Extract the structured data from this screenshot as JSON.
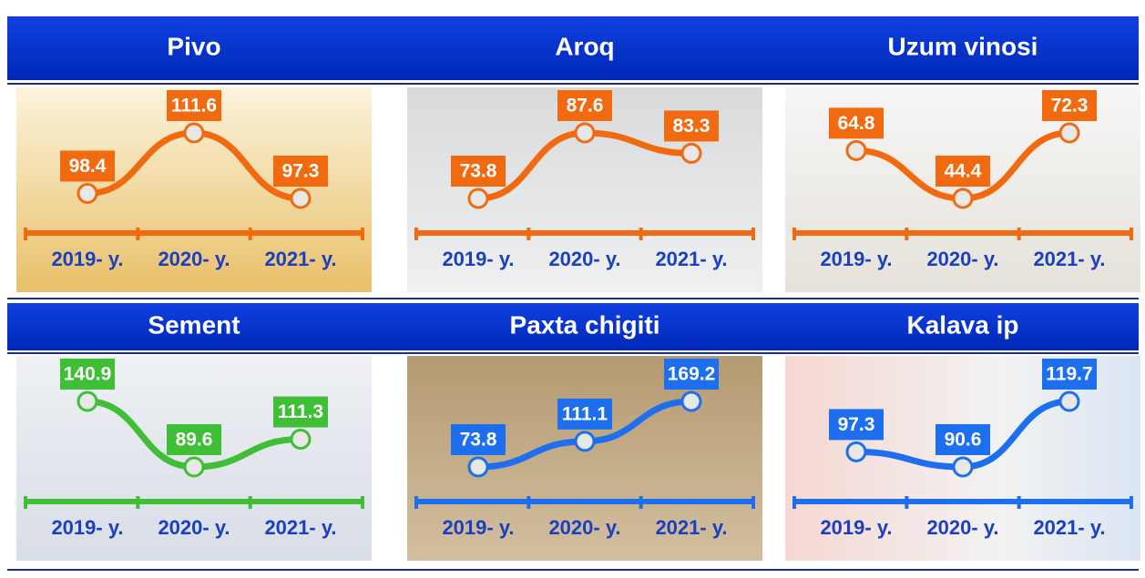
{
  "chart_data": [
    {
      "type": "line",
      "title": "Pivo",
      "categories": [
        "2019- y.",
        "2020- y.",
        "2021- y."
      ],
      "values": [
        98.4,
        111.6,
        97.3
      ],
      "color": "#f26a10"
    },
    {
      "type": "line",
      "title": "Aroq",
      "categories": [
        "2019- y.",
        "2020- y.",
        "2021- y."
      ],
      "values": [
        73.8,
        87.6,
        83.3
      ],
      "color": "#f26a10"
    },
    {
      "type": "line",
      "title": "Uzum vinosi",
      "categories": [
        "2019- y.",
        "2020- y.",
        "2021- y."
      ],
      "values": [
        64.8,
        44.4,
        72.3
      ],
      "color": "#f26a10"
    },
    {
      "type": "line",
      "title": "Sement",
      "categories": [
        "2019- y.",
        "2020- y.",
        "2021- y."
      ],
      "values": [
        140.9,
        89.6,
        111.3
      ],
      "color": "#3fbf35"
    },
    {
      "type": "line",
      "title": "Paxta chigiti",
      "categories": [
        "2019- y.",
        "2020- y.",
        "2021- y."
      ],
      "values": [
        73.8,
        111.1,
        169.2
      ],
      "color": "#1d6ff0"
    },
    {
      "type": "line",
      "title": "Kalava ip",
      "categories": [
        "2019- y.",
        "2020- y.",
        "2021- y."
      ],
      "values": [
        97.3,
        90.6,
        119.7
      ],
      "color": "#1d6ff0"
    }
  ]
}
